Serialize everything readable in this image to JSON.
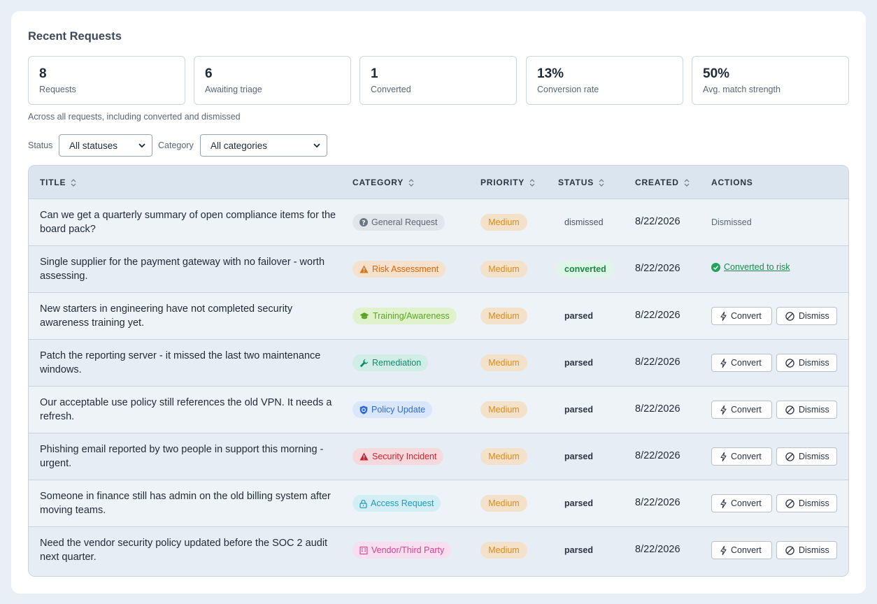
{
  "page": {
    "title": "Recent Requests"
  },
  "stats": [
    {
      "value": "8",
      "label": "Requests"
    },
    {
      "value": "6",
      "label": "Awaiting triage"
    },
    {
      "value": "1",
      "label": "Converted"
    },
    {
      "value": "13%",
      "label": "Conversion rate"
    },
    {
      "value": "50%",
      "label": "Avg. match strength"
    }
  ],
  "stats_note": "Across all requests, including converted and dismissed",
  "filters": {
    "status_label": "Status",
    "status_value": "All statuses",
    "category_label": "Category",
    "category_value": "All categories"
  },
  "table": {
    "headers": [
      "TITLE",
      "CATEGORY",
      "PRIORITY",
      "STATUS",
      "CREATED",
      "ACTIONS"
    ],
    "rows": [
      {
        "title": "Can we get a quarterly summary of open compliance items for the board pack?",
        "category": "General Request",
        "category_icon": "question-icon",
        "priority": "Medium",
        "status": "dismissed",
        "created": "8/22/2026",
        "action": "Dismissed"
      },
      {
        "title": "Single supplier for the payment gateway with no failover - worth assessing.",
        "category": "Risk Assessment",
        "category_icon": "warning-icon",
        "priority": "Medium",
        "status": "converted",
        "created": "8/22/2026",
        "action": "Converted to risk"
      },
      {
        "title": "New starters in engineering have not completed security awareness training yet.",
        "category": "Training/Awareness",
        "category_icon": "graduation-cap-icon",
        "priority": "Medium",
        "status": "parsed",
        "created": "8/22/2026"
      },
      {
        "title": "Patch the reporting server - it missed the last two maintenance windows.",
        "category": "Remediation",
        "category_icon": "wrench-icon",
        "priority": "Medium",
        "status": "parsed",
        "created": "8/22/2026"
      },
      {
        "title": "Our acceptable use policy still references the old VPN. It needs a refresh.",
        "category": "Policy Update",
        "category_icon": "shield-icon",
        "priority": "Medium",
        "status": "parsed",
        "created": "8/22/2026"
      },
      {
        "title": "Phishing email reported by two people in support this morning - urgent.",
        "category": "Security Incident",
        "category_icon": "alert-icon",
        "priority": "Medium",
        "status": "parsed",
        "created": "8/22/2026"
      },
      {
        "title": "Someone in finance still has admin on the old billing system after moving teams.",
        "category": "Access Request",
        "category_icon": "lock-icon",
        "priority": "Medium",
        "status": "parsed",
        "created": "8/22/2026"
      },
      {
        "title": "Need the vendor security policy updated before the SOC 2 audit next quarter.",
        "category": "Vendor/Third Party",
        "category_icon": "building-icon",
        "priority": "Medium",
        "status": "parsed",
        "created": "8/22/2026"
      }
    ],
    "convert_label": "Convert",
    "dismiss_label": "Dismiss"
  },
  "colors": {
    "general": "#e2e6eb",
    "risk": "#f5e1cc",
    "training": "#dff2cc",
    "remediation": "#cfeee6",
    "policy": "#d9e6fb",
    "incident": "#f6d9dc",
    "access": "#d3eef5",
    "vendor": "#f7dff0"
  }
}
